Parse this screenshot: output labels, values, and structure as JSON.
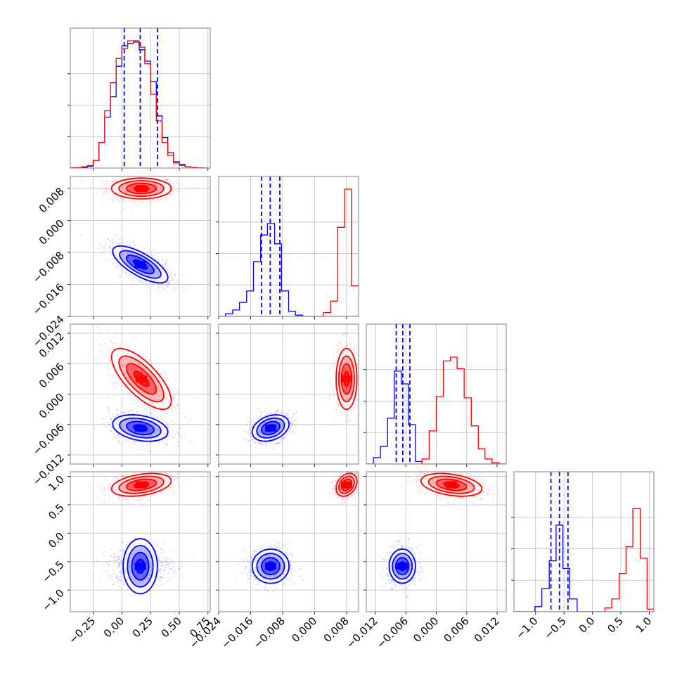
{
  "chart_data": {
    "type": "scatter",
    "colors": {
      "series_a": "#ff0000",
      "series_b": "#0000ff"
    },
    "series": [
      {
        "color": "#ff0000"
      },
      {
        "color": "#0000ff"
      }
    ],
    "grid": true,
    "x_tick_labels": [
      [
        "−0.25",
        "0.00",
        "0.25",
        "0.50",
        "0.75"
      ],
      [
        "−0.024",
        "−0.016",
        "−0.008",
        "0.000",
        "0.008"
      ],
      [
        "−0.012",
        "−0.006",
        "0.000",
        "0.006",
        "0.012"
      ],
      [
        "−1.0",
        "−0.5",
        "0.0",
        "0.5",
        "1.0"
      ]
    ],
    "y_tick_labels": {
      "row1": [
        "0.008",
        "0.000",
        "−0.008",
        "−0.016",
        "−0.024"
      ],
      "row2": [
        "0.012",
        "0.006",
        "0.000",
        "−0.006",
        "−0.012"
      ],
      "row3": [
        "1.0",
        "0.5",
        "0.0",
        "−0.5",
        "−1.0"
      ]
    },
    "parameters": [
      {
        "range": [
          -0.45,
          0.77
        ],
        "ticks": [
          -0.25,
          0.0,
          0.25,
          0.5,
          0.75
        ]
      },
      {
        "range": [
          -0.024,
          0.011
        ],
        "ticks": [
          -0.024,
          -0.016,
          -0.008,
          0.0,
          0.008
        ]
      },
      {
        "range": [
          -0.0138,
          0.0138
        ],
        "ticks": [
          -0.012,
          -0.006,
          0.0,
          0.006,
          0.012
        ]
      },
      {
        "range": [
          -1.38,
          1.08
        ],
        "ticks": [
          -1.0,
          -0.5,
          0.0,
          0.5,
          1.0
        ]
      }
    ],
    "quantiles": [
      [
        0.02,
        0.16,
        0.31
      ],
      [
        -0.0133,
        -0.0111,
        -0.0087
      ],
      [
        -0.0079,
        -0.0066,
        -0.0052
      ],
      [
        -0.73,
        -0.58,
        -0.43
      ]
    ],
    "marginals": [
      {
        "edges": [
          -0.45,
          -0.4,
          -0.35,
          -0.3,
          -0.25,
          -0.2,
          -0.15,
          -0.1,
          -0.05,
          0.0,
          0.05,
          0.1,
          0.15,
          0.2,
          0.25,
          0.3,
          0.35,
          0.4,
          0.45,
          0.5,
          0.55,
          0.6,
          0.65,
          0.7,
          0.75
        ],
        "red": [
          0.002,
          0.004,
          0.01,
          0.02,
          0.06,
          0.2,
          0.45,
          0.67,
          0.86,
          0.94,
          1.0,
          1.0,
          0.95,
          0.82,
          0.58,
          0.37,
          0.2,
          0.1,
          0.04,
          0.02,
          0.01,
          0.004,
          0.002,
          0.0
        ],
        "blue": [
          0.0,
          0.002,
          0.005,
          0.015,
          0.06,
          0.2,
          0.4,
          0.56,
          0.8,
          0.96,
          0.98,
          0.99,
          0.93,
          0.84,
          0.68,
          0.41,
          0.24,
          0.12,
          0.05,
          0.03,
          0.01,
          0.005,
          0.002,
          0.0
        ]
      },
      {
        "edges": [
          -0.024,
          -0.0223,
          -0.0205,
          -0.0188,
          -0.017,
          -0.0153,
          -0.0135,
          -0.0118,
          -0.01,
          -0.0083,
          -0.0065,
          -0.0048,
          -0.003,
          -0.0013,
          0.0005,
          0.0022,
          0.004,
          0.0057,
          0.0075,
          0.0092,
          0.011
        ],
        "red": [
          0.0,
          0.0,
          0.0,
          0.0,
          0.0,
          0.0,
          0.0,
          0.0,
          0.0,
          0.0,
          0.0,
          0.0,
          0.0,
          0.0,
          0.0,
          0.03,
          0.12,
          0.7,
          1.0,
          0.24
        ],
        "blue": [
          0.0,
          0.02,
          0.05,
          0.11,
          0.2,
          0.43,
          0.64,
          0.73,
          0.57,
          0.2,
          0.04,
          0.01,
          0.0,
          0.0,
          0.0,
          0.0,
          0.0,
          0.0,
          0.0,
          0.0
        ]
      },
      {
        "edges": [
          -0.0138,
          -0.0124,
          -0.011,
          -0.0096,
          -0.0083,
          -0.0069,
          -0.0055,
          -0.0041,
          -0.0028,
          -0.0014,
          0.0,
          0.0014,
          0.0028,
          0.0041,
          0.0055,
          0.0069,
          0.0083,
          0.0096,
          0.011,
          0.0124,
          0.0138
        ],
        "red": [
          0.0,
          0.0,
          0.0,
          0.0,
          0.0,
          0.0,
          0.0,
          0.0,
          0.04,
          0.26,
          0.53,
          0.81,
          0.84,
          0.75,
          0.52,
          0.3,
          0.12,
          0.04,
          0.01,
          0.0
        ],
        "blue": [
          0.0,
          0.05,
          0.14,
          0.36,
          0.73,
          0.63,
          0.31,
          0.02,
          0.0,
          0.0,
          0.0,
          0.0,
          0.0,
          0.0,
          0.0,
          0.0,
          0.0,
          0.0,
          0.0,
          0.0
        ]
      },
      {
        "edges": [
          -1.38,
          -1.26,
          -1.13,
          -1.01,
          -0.89,
          -0.76,
          -0.64,
          -0.52,
          -0.4,
          -0.27,
          -0.15,
          -0.03,
          0.1,
          0.22,
          0.34,
          0.47,
          0.59,
          0.71,
          0.84,
          0.96,
          1.08
        ],
        "red": [
          0.0,
          0.0,
          0.0,
          0.0,
          0.0,
          0.0,
          0.0,
          0.0,
          0.0,
          0.0,
          0.0,
          0.0,
          0.0,
          0.03,
          0.1,
          0.3,
          0.51,
          0.81,
          0.42,
          0.02
        ],
        "blue": [
          0.0,
          0.0,
          0.0,
          0.04,
          0.18,
          0.4,
          0.68,
          0.34,
          0.1,
          0.0,
          0.0,
          0.0,
          0.0,
          0.0,
          0.0,
          0.0,
          0.0,
          0.0,
          0.0,
          0.0
        ]
      }
    ],
    "joint": [
      {
        "row": 1,
        "col": 0,
        "clusters": [
          {
            "series": 0,
            "mean": [
              0.17,
              0.008
            ],
            "sd": [
              0.13,
              0.0013
            ],
            "rho": 0.0
          },
          {
            "series": 1,
            "mean": [
              0.16,
              -0.011
            ],
            "sd": [
              0.12,
              0.0023
            ],
            "rho": -0.72
          }
        ]
      },
      {
        "row": 2,
        "col": 0,
        "clusters": [
          {
            "series": 0,
            "mean": [
              0.17,
              0.003
            ],
            "sd": [
              0.13,
              0.003
            ],
            "rho": -0.72
          },
          {
            "series": 1,
            "mean": [
              0.16,
              -0.0067
            ],
            "sd": [
              0.12,
              0.0013
            ],
            "rho": -0.3
          }
        ]
      },
      {
        "row": 2,
        "col": 1,
        "clusters": [
          {
            "series": 0,
            "mean": [
              0.008,
              0.003
            ],
            "sd": [
              0.0013,
              0.003
            ],
            "rho": 0.0
          },
          {
            "series": 1,
            "mean": [
              -0.011,
              -0.0067
            ],
            "sd": [
              0.0023,
              0.0013
            ],
            "rho": 0.3
          }
        ]
      },
      {
        "row": 3,
        "col": 0,
        "clusters": [
          {
            "series": 0,
            "mean": [
              0.17,
              0.85
            ],
            "sd": [
              0.13,
              0.1
            ],
            "rho": 0.35
          },
          {
            "series": 1,
            "mean": [
              0.16,
              -0.58
            ],
            "sd": [
              0.12,
              0.15
            ],
            "rho": 0.0
          }
        ]
      },
      {
        "row": 3,
        "col": 1,
        "clusters": [
          {
            "series": 0,
            "mean": [
              0.008,
              0.85
            ],
            "sd": [
              0.0013,
              0.1
            ],
            "rho": 0.3
          },
          {
            "series": 1,
            "mean": [
              -0.011,
              -0.58
            ],
            "sd": [
              0.0023,
              0.15
            ],
            "rho": 0.0
          }
        ]
      },
      {
        "row": 3,
        "col": 2,
        "clusters": [
          {
            "series": 0,
            "mean": [
              0.003,
              0.85
            ],
            "sd": [
              0.003,
              0.1
            ],
            "rho": -0.35
          },
          {
            "series": 1,
            "mean": [
              -0.0067,
              -0.58
            ],
            "sd": [
              0.0013,
              0.15
            ],
            "rho": 0.0
          }
        ]
      }
    ]
  }
}
